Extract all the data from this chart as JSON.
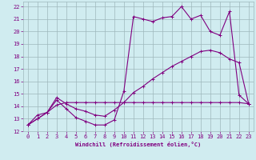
{
  "background_color": "#d0ecf0",
  "grid_color": "#9eb8bc",
  "line_color": "#800080",
  "xlabel": "Windchill (Refroidissement éolien,°C)",
  "xlim": [
    -0.5,
    23.5
  ],
  "ylim": [
    12,
    22.4
  ],
  "yticks": [
    12,
    13,
    14,
    15,
    16,
    17,
    18,
    19,
    20,
    21,
    22
  ],
  "xticks": [
    0,
    1,
    2,
    3,
    4,
    5,
    6,
    7,
    8,
    9,
    10,
    11,
    12,
    13,
    14,
    15,
    16,
    17,
    18,
    19,
    20,
    21,
    22,
    23
  ],
  "line1_x": [
    0,
    1,
    2,
    3,
    4,
    5,
    6,
    7,
    8,
    9,
    10,
    11,
    12,
    13,
    14,
    15,
    16,
    17,
    18,
    19,
    20,
    21,
    22,
    23
  ],
  "line1_y": [
    12.5,
    13.3,
    13.5,
    14.5,
    13.8,
    13.1,
    12.8,
    12.5,
    12.5,
    12.9,
    15.2,
    21.2,
    21.0,
    20.8,
    21.1,
    21.2,
    22.0,
    21.0,
    21.3,
    20.0,
    19.7,
    21.6,
    14.9,
    14.2
  ],
  "line2_x": [
    0,
    1,
    2,
    3,
    4,
    5,
    6,
    7,
    8,
    9,
    10,
    11,
    12,
    13,
    14,
    15,
    16,
    17,
    18,
    19,
    20,
    21,
    22,
    23
  ],
  "line2_y": [
    12.5,
    13.0,
    13.5,
    14.7,
    14.2,
    13.8,
    13.6,
    13.3,
    13.2,
    13.7,
    14.3,
    15.1,
    15.6,
    16.2,
    16.7,
    17.2,
    17.6,
    18.0,
    18.4,
    18.5,
    18.3,
    17.8,
    17.5,
    14.2
  ],
  "line3_x": [
    0,
    1,
    2,
    3,
    4,
    5,
    6,
    7,
    8,
    9,
    10,
    11,
    12,
    13,
    14,
    15,
    16,
    17,
    18,
    19,
    20,
    21,
    22,
    23
  ],
  "line3_y": [
    12.5,
    13.0,
    13.5,
    14.1,
    14.3,
    14.3,
    14.3,
    14.3,
    14.3,
    14.3,
    14.3,
    14.3,
    14.3,
    14.3,
    14.3,
    14.3,
    14.3,
    14.3,
    14.3,
    14.3,
    14.3,
    14.3,
    14.3,
    14.2
  ]
}
